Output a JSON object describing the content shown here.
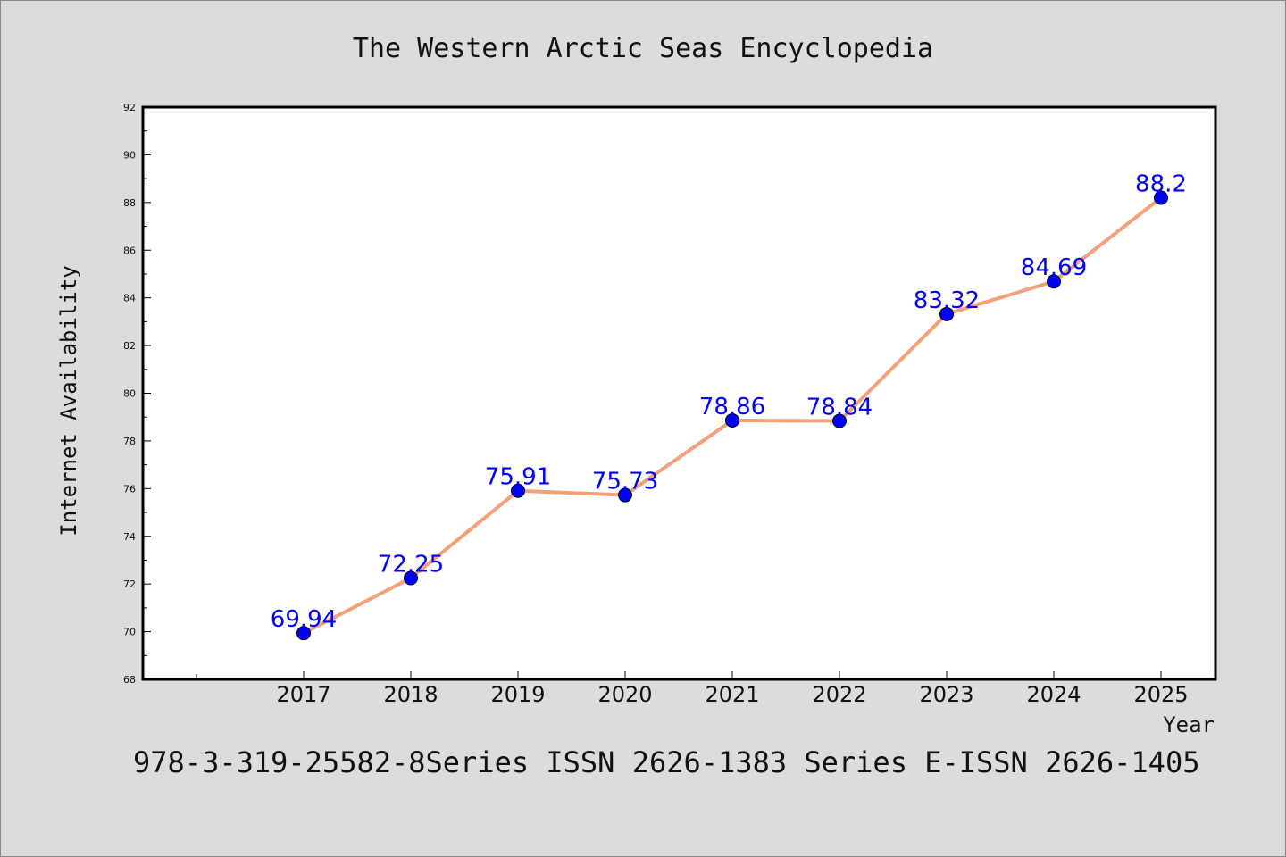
{
  "chart_data": {
    "type": "line",
    "title": "The Western Arctic Seas Encyclopedia",
    "xlabel": "Year",
    "ylabel": "Internet Availability",
    "categories": [
      "2017",
      "2018",
      "2019",
      "2020",
      "2021",
      "2022",
      "2023",
      "2024",
      "2025"
    ],
    "series": [
      {
        "values": [
          69.94,
          72.25,
          75.91,
          75.73,
          78.86,
          78.84,
          83.32,
          84.69,
          88.2
        ],
        "labels": [
          "69.94",
          "72.25",
          "75.91",
          "75.73",
          "78.86",
          "78.84",
          "83.32",
          "84.69",
          "88.2"
        ],
        "line_color": "#f4a07a",
        "marker_color": "#0000ff"
      }
    ],
    "ylim": [
      68,
      92
    ],
    "yticks": [
      "68",
      "70",
      "72",
      "74",
      "76",
      "78",
      "80",
      "82",
      "84",
      "86",
      "88",
      "90",
      "92"
    ],
    "grid": false,
    "legend": "none"
  },
  "footer": {
    "text": "978-3-319-25582-8Series ISSN 2626-1383 Series E-ISSN 2626-1405"
  }
}
